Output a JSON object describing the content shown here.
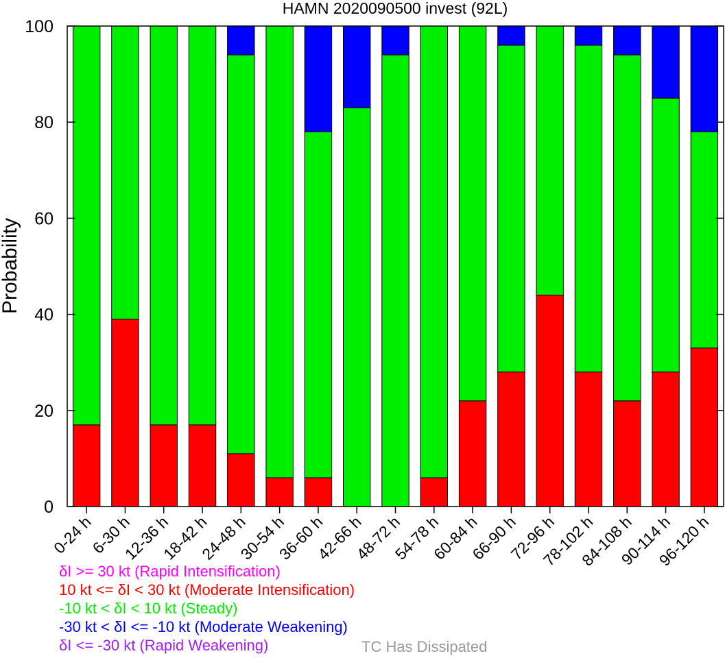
{
  "chart_data": {
    "type": "bar",
    "stacked": true,
    "title": "HAMN 2020090500 invest (92L)",
    "xlabel": "",
    "ylabel": "Probability",
    "ylim": [
      0,
      100
    ],
    "yticks": [
      "0",
      "20",
      "40",
      "60",
      "80",
      "100"
    ],
    "categories": [
      "0-24 h",
      "6-30 h",
      "12-36 h",
      "18-42 h",
      "24-48 h",
      "30-54 h",
      "36-60 h",
      "42-66 h",
      "48-72 h",
      "54-78 h",
      "60-84 h",
      "66-90 h",
      "72-96 h",
      "78-102 h",
      "84-108 h",
      "90-114 h",
      "96-120 h"
    ],
    "series": [
      {
        "color": "#ff0000",
        "values": [
          17,
          39,
          17,
          17,
          11,
          6,
          6,
          0,
          0,
          6,
          22,
          28,
          44,
          28,
          22,
          28,
          33
        ]
      },
      {
        "color": "#00ee00",
        "values": [
          83,
          61,
          83,
          83,
          83,
          94,
          72,
          83,
          94,
          94,
          78,
          68,
          56,
          68,
          72,
          57,
          45
        ]
      },
      {
        "color": "#0000ff",
        "values": [
          0,
          0,
          0,
          0,
          6,
          0,
          22,
          17,
          6,
          0,
          0,
          4,
          0,
          4,
          6,
          15,
          22
        ]
      }
    ],
    "legend": [
      {
        "text": "δI >= 30 kt (Rapid Intensification)",
        "color": "#ff00ff"
      },
      {
        "text": "10 kt <= δI < 30 kt (Moderate Intensification)",
        "color": "#ff0000"
      },
      {
        "text": "-10 kt < δI < 10 kt (Steady)",
        "color": "#00ee00"
      },
      {
        "text": "-30 kt < δI <= -10 kt (Moderate Weakening)",
        "color": "#0000ff"
      },
      {
        "text": "δI <= -30 kt (Rapid Weakening)",
        "color": "#a020f0"
      }
    ],
    "dissipated_label": {
      "text": "TC Has Dissipated",
      "color": "#999999"
    }
  }
}
